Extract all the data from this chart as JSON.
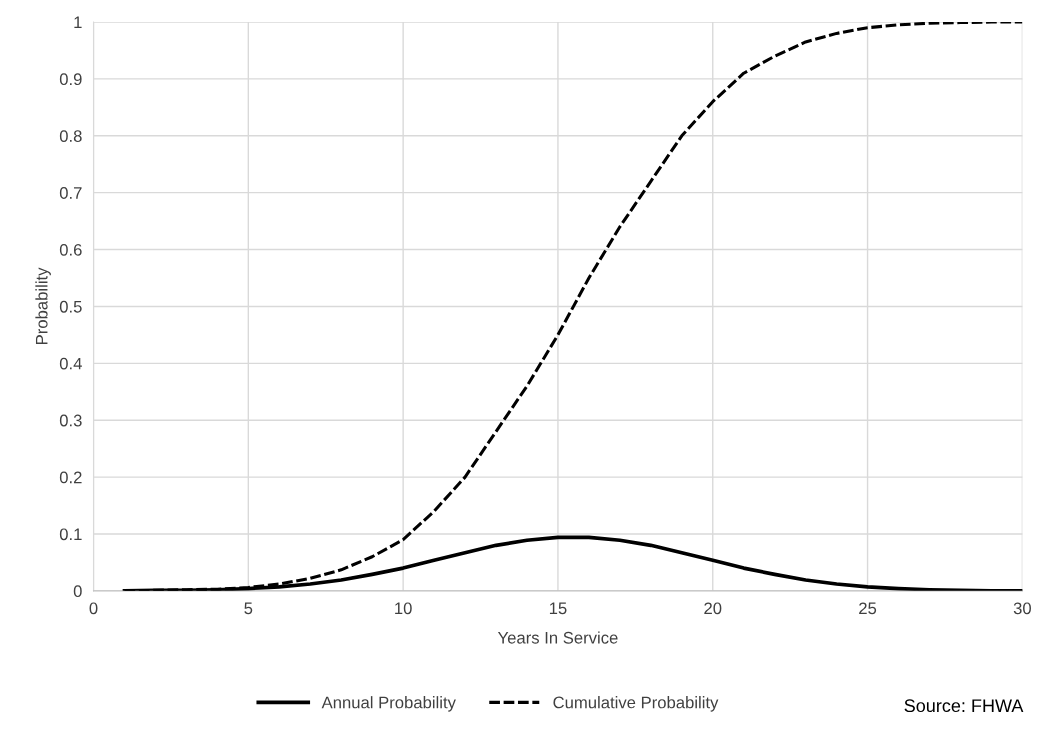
{
  "chart_data": {
    "type": "line",
    "xlabel": "Years In Service",
    "ylabel": "Probability",
    "x": [
      1,
      2,
      3,
      4,
      5,
      6,
      7,
      8,
      9,
      10,
      11,
      12,
      13,
      14,
      15,
      16,
      17,
      18,
      19,
      20,
      21,
      22,
      23,
      24,
      25,
      26,
      27,
      28,
      29,
      30
    ],
    "series": [
      {
        "name": "Annual Probability",
        "color": "#000000",
        "line_style": "solid",
        "values": [
          0.0,
          0.001,
          0.001,
          0.002,
          0.004,
          0.007,
          0.012,
          0.019,
          0.029,
          0.04,
          0.054,
          0.067,
          0.08,
          0.089,
          0.094,
          0.094,
          0.089,
          0.08,
          0.067,
          0.054,
          0.04,
          0.029,
          0.019,
          0.012,
          0.007,
          0.004,
          0.002,
          0.001,
          0.0,
          0.0
        ]
      },
      {
        "name": "Cumulative Probability",
        "color": "#000000",
        "line_style": "dashed",
        "values": [
          0.0,
          0.001,
          0.002,
          0.003,
          0.006,
          0.012,
          0.022,
          0.037,
          0.06,
          0.09,
          0.14,
          0.2,
          0.28,
          0.36,
          0.45,
          0.55,
          0.64,
          0.72,
          0.8,
          0.86,
          0.91,
          0.94,
          0.965,
          0.98,
          0.99,
          0.995,
          0.998,
          0.999,
          1.0,
          1.0
        ]
      }
    ],
    "xlim": [
      0,
      30
    ],
    "xticks": [
      0,
      5,
      10,
      15,
      20,
      25,
      30
    ],
    "ylim": [
      0,
      1
    ],
    "yticks": [
      0,
      {
        "value": 0.1,
        "label": "0.1"
      },
      {
        "value": 0.2,
        "label": "0.2"
      },
      {
        "value": 0.3,
        "label": "0.3"
      },
      {
        "value": 0.4,
        "label": "0.4"
      },
      {
        "value": 0.5,
        "label": "0.5"
      },
      {
        "value": 0.6,
        "label": "0.6"
      },
      {
        "value": 0.7,
        "label": "0.7"
      },
      {
        "value": 0.8,
        "label": "0.8"
      },
      {
        "value": 0.9,
        "label": "0.9"
      },
      1
    ],
    "grid": true,
    "legend": "bottom",
    "marker": "none",
    "annotations": [
      "Source: FHWA"
    ]
  }
}
